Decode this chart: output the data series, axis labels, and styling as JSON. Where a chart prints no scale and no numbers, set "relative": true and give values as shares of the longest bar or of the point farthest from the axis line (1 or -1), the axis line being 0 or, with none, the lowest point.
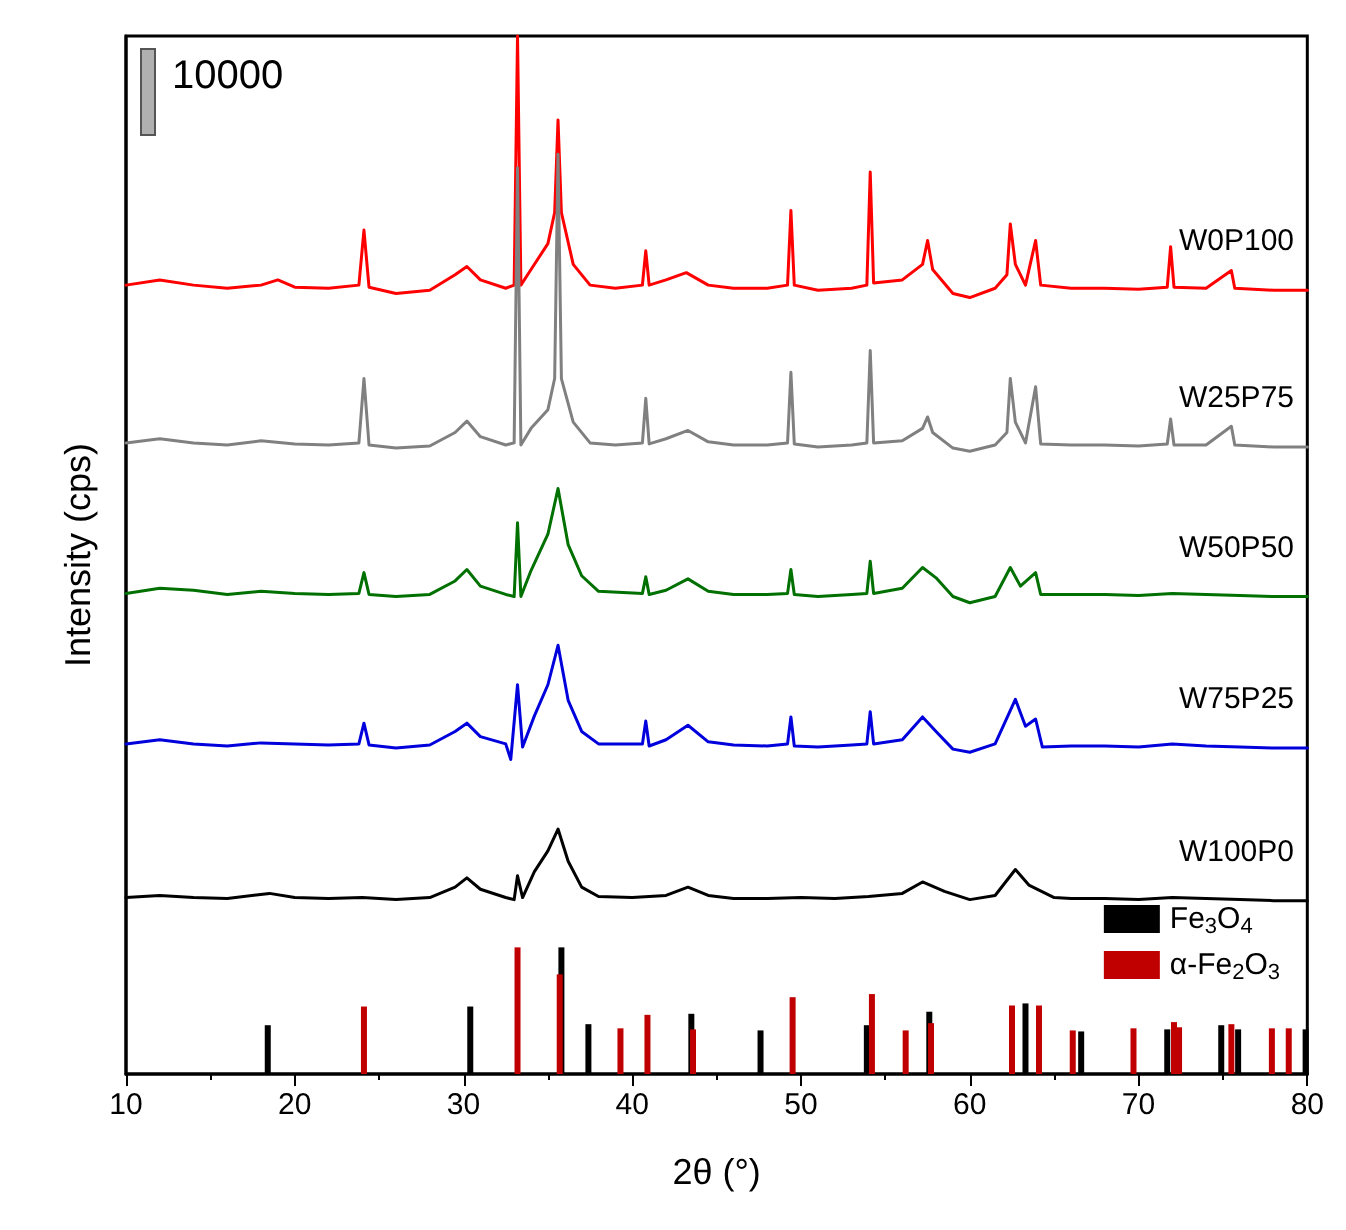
{
  "chart_data": {
    "type": "line",
    "relative": true,
    "xlabel": "2θ (°)",
    "ylabel": "Intensity (cps)",
    "annotations": [
      "10000"
    ],
    "xlim": [
      10,
      80
    ],
    "xticks": [
      10,
      20,
      30,
      40,
      50,
      60,
      70,
      80
    ],
    "grid": false,
    "legend": "bottom right",
    "marker": "none",
    "line_style": "solid",
    "series": [
      {
        "name": "W0P100",
        "color": "#ff0000",
        "x": [
          10,
          12,
          14,
          16,
          18,
          19,
          20,
          22,
          23.8,
          24.1,
          24.4,
          26,
          28,
          29.5,
          30.2,
          31,
          32.5,
          33.0,
          33.2,
          33.4,
          34,
          35,
          35.4,
          35.6,
          35.8,
          36.5,
          37.5,
          39,
          40.6,
          40.8,
          41.0,
          42,
          43.2,
          44.5,
          46,
          48,
          49.2,
          49.4,
          49.6,
          51,
          53,
          53.9,
          54.1,
          54.3,
          56,
          57.2,
          57.5,
          57.8,
          59,
          60,
          61.5,
          62.2,
          62.4,
          62.7,
          63.3,
          63.9,
          64.2,
          66,
          68,
          70,
          71.7,
          71.9,
          72.1,
          74,
          75.5,
          75.7,
          78,
          80
        ],
        "values": [
          0.76,
          0.765,
          0.76,
          0.757,
          0.76,
          0.765,
          0.758,
          0.757,
          0.76,
          0.813,
          0.758,
          0.752,
          0.755,
          0.77,
          0.778,
          0.765,
          0.757,
          0.76,
          1.0,
          0.76,
          0.775,
          0.8,
          0.83,
          0.919,
          0.83,
          0.78,
          0.76,
          0.757,
          0.76,
          0.793,
          0.76,
          0.765,
          0.772,
          0.76,
          0.757,
          0.757,
          0.76,
          0.832,
          0.76,
          0.755,
          0.757,
          0.76,
          0.869,
          0.762,
          0.765,
          0.78,
          0.803,
          0.775,
          0.752,
          0.748,
          0.757,
          0.77,
          0.819,
          0.78,
          0.76,
          0.803,
          0.76,
          0.757,
          0.757,
          0.756,
          0.758,
          0.797,
          0.758,
          0.757,
          0.774,
          0.757,
          0.755,
          0.755
        ]
      },
      {
        "name": "W25P75",
        "color": "#808080",
        "x": [
          10,
          12,
          14,
          16,
          18,
          20,
          22,
          23.8,
          24.1,
          24.4,
          26,
          28,
          29.5,
          30.2,
          31,
          32.5,
          33.0,
          33.2,
          33.4,
          34,
          35,
          35.4,
          35.6,
          35.8,
          36.5,
          37.5,
          39,
          40.6,
          40.8,
          41.0,
          42,
          43.3,
          44.5,
          46,
          48,
          49.2,
          49.4,
          49.6,
          51,
          53,
          53.9,
          54.1,
          54.3,
          56,
          57.2,
          57.5,
          57.8,
          59,
          60,
          61.5,
          62.2,
          62.4,
          62.7,
          63.3,
          63.9,
          64.2,
          66,
          68,
          70,
          71.7,
          71.9,
          72.1,
          74,
          75.5,
          75.7,
          78,
          80
        ],
        "values": [
          0.608,
          0.612,
          0.608,
          0.606,
          0.61,
          0.607,
          0.606,
          0.608,
          0.67,
          0.606,
          0.603,
          0.605,
          0.618,
          0.629,
          0.614,
          0.606,
          0.608,
          0.873,
          0.606,
          0.622,
          0.64,
          0.67,
          0.886,
          0.67,
          0.628,
          0.608,
          0.606,
          0.608,
          0.651,
          0.607,
          0.612,
          0.62,
          0.609,
          0.606,
          0.606,
          0.608,
          0.676,
          0.607,
          0.604,
          0.606,
          0.608,
          0.697,
          0.608,
          0.61,
          0.622,
          0.633,
          0.618,
          0.603,
          0.6,
          0.606,
          0.618,
          0.67,
          0.628,
          0.608,
          0.662,
          0.607,
          0.606,
          0.606,
          0.605,
          0.607,
          0.631,
          0.606,
          0.606,
          0.624,
          0.606,
          0.604,
          0.604
        ]
      },
      {
        "name": "W50P50",
        "color": "#007000",
        "x": [
          10,
          12,
          14,
          16,
          18,
          20,
          22,
          23.8,
          24.1,
          24.4,
          26,
          28,
          29.5,
          30.2,
          31,
          32.5,
          33.0,
          33.2,
          33.4,
          34,
          35,
          35.6,
          36.2,
          37,
          38,
          40.6,
          40.8,
          41.0,
          42,
          43.3,
          44.5,
          46,
          48,
          49.2,
          49.4,
          49.6,
          51,
          53,
          53.9,
          54.1,
          54.3,
          56,
          57.2,
          58,
          59,
          60,
          61.5,
          62.4,
          63,
          63.9,
          64.2,
          66,
          68,
          70,
          72,
          74,
          76,
          78,
          80
        ],
        "values": [
          0.463,
          0.468,
          0.466,
          0.462,
          0.465,
          0.463,
          0.462,
          0.463,
          0.483,
          0.462,
          0.46,
          0.462,
          0.475,
          0.486,
          0.47,
          0.462,
          0.46,
          0.531,
          0.46,
          0.485,
          0.52,
          0.564,
          0.51,
          0.48,
          0.465,
          0.463,
          0.479,
          0.462,
          0.466,
          0.477,
          0.465,
          0.462,
          0.462,
          0.463,
          0.486,
          0.462,
          0.46,
          0.462,
          0.463,
          0.494,
          0.463,
          0.468,
          0.488,
          0.478,
          0.46,
          0.454,
          0.46,
          0.488,
          0.47,
          0.483,
          0.462,
          0.462,
          0.462,
          0.461,
          0.463,
          0.462,
          0.461,
          0.46,
          0.46
        ]
      },
      {
        "name": "W75P25",
        "color": "#0000dd",
        "x": [
          10,
          12,
          14,
          16,
          18,
          20,
          22,
          23.8,
          24.1,
          24.4,
          26,
          28,
          29.5,
          30.2,
          31,
          32.5,
          32.8,
          33.2,
          33.5,
          34.2,
          35,
          35.6,
          36.2,
          37,
          38,
          40.6,
          40.8,
          41.0,
          42,
          43.3,
          44.5,
          46,
          48,
          49.2,
          49.4,
          49.6,
          51,
          53,
          53.9,
          54.1,
          54.3,
          56,
          57.2,
          58,
          59,
          60,
          61.5,
          62.7,
          63.3,
          63.9,
          64.3,
          66,
          68,
          70,
          72,
          74,
          76,
          78,
          80
        ],
        "values": [
          0.318,
          0.322,
          0.318,
          0.316,
          0.319,
          0.318,
          0.317,
          0.318,
          0.338,
          0.317,
          0.314,
          0.317,
          0.33,
          0.338,
          0.325,
          0.318,
          0.303,
          0.375,
          0.315,
          0.345,
          0.375,
          0.413,
          0.36,
          0.33,
          0.318,
          0.318,
          0.34,
          0.316,
          0.322,
          0.336,
          0.32,
          0.317,
          0.316,
          0.318,
          0.344,
          0.316,
          0.315,
          0.317,
          0.318,
          0.349,
          0.318,
          0.322,
          0.344,
          0.33,
          0.313,
          0.31,
          0.318,
          0.361,
          0.335,
          0.342,
          0.315,
          0.316,
          0.316,
          0.315,
          0.318,
          0.316,
          0.315,
          0.314,
          0.314
        ]
      },
      {
        "name": "W100P0",
        "color": "#000000",
        "x": [
          10,
          12,
          14,
          16,
          18.5,
          20,
          22,
          24,
          26,
          28,
          29.5,
          30.2,
          31,
          32.5,
          33.0,
          33.2,
          33.5,
          34.2,
          35,
          35.6,
          36.2,
          37,
          38,
          40,
          42,
          43.3,
          44.5,
          46,
          48,
          50,
          52,
          54,
          56,
          57.2,
          58.5,
          60,
          61.5,
          62.7,
          63.5,
          65,
          66,
          68,
          70,
          72,
          74,
          76,
          78,
          80
        ],
        "values": [
          0.17,
          0.172,
          0.17,
          0.169,
          0.174,
          0.17,
          0.169,
          0.17,
          0.168,
          0.17,
          0.18,
          0.189,
          0.178,
          0.17,
          0.168,
          0.191,
          0.17,
          0.195,
          0.215,
          0.236,
          0.205,
          0.18,
          0.171,
          0.17,
          0.172,
          0.18,
          0.172,
          0.169,
          0.169,
          0.17,
          0.169,
          0.171,
          0.174,
          0.185,
          0.176,
          0.168,
          0.172,
          0.197,
          0.182,
          0.17,
          0.169,
          0.169,
          0.168,
          0.17,
          0.169,
          0.168,
          0.167,
          0.167
        ]
      },
      {
        "name": "Fe$_{3}$O$_{4}$",
        "type": "bar",
        "color": "#000000",
        "x": [
          18.4,
          30.4,
          35.8,
          37.4,
          43.5,
          47.6,
          53.9,
          57.6,
          63.3,
          66.6,
          71.7,
          74.9,
          75.9,
          79.9
        ],
        "values": [
          0.047,
          0.065,
          0.122,
          0.048,
          0.058,
          0.042,
          0.047,
          0.06,
          0.068,
          0.041,
          0.043,
          0.047,
          0.043,
          0.043
        ]
      },
      {
        "name": "α-Fe$_{2}$O$_{3}$",
        "type": "bar",
        "color": "#c00000",
        "x": [
          24.1,
          33.2,
          35.7,
          39.3,
          40.9,
          43.6,
          49.5,
          54.2,
          56.2,
          57.7,
          62.5,
          64.1,
          66.1,
          69.7,
          72.1,
          72.4,
          75.5,
          77.9,
          78.9
        ],
        "values": [
          0.065,
          0.122,
          0.096,
          0.044,
          0.057,
          0.043,
          0.074,
          0.077,
          0.042,
          0.049,
          0.066,
          0.066,
          0.042,
          0.044,
          0.05,
          0.045,
          0.048,
          0.044,
          0.044
        ]
      }
    ]
  }
}
